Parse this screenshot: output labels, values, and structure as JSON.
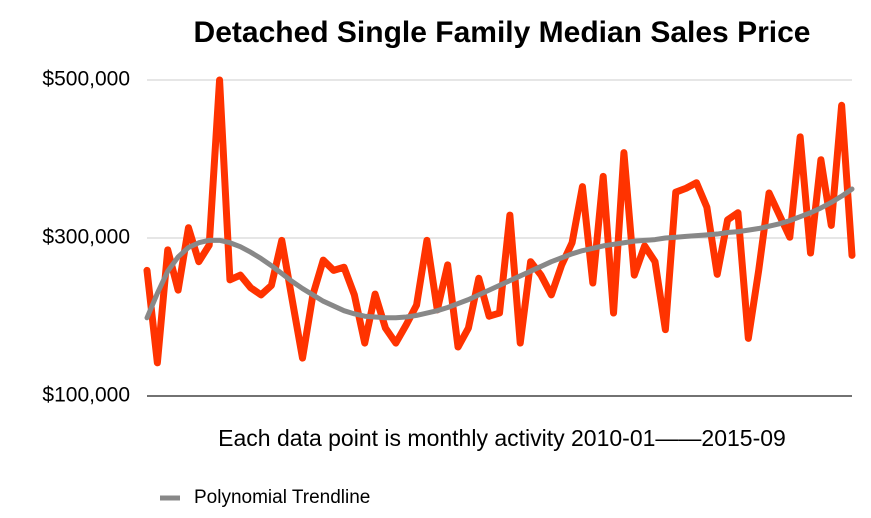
{
  "chart_data": {
    "type": "line",
    "title": "Detached Single Family Median Sales Price",
    "x_label": "Each data point is monthly activity 2010-01——2015-09",
    "ylim": [
      100000,
      500000
    ],
    "yticks": [
      {
        "value": 100000,
        "label": "$100,000"
      },
      {
        "value": 300000,
        "label": "$300,000"
      },
      {
        "value": 500000,
        "label": "$500,000"
      }
    ],
    "grid": true,
    "legend": "bottom-left",
    "series": [
      {
        "color": "#ff3300",
        "values": [
          259000,
          142000,
          285000,
          234000,
          313000,
          270000,
          291000,
          500000,
          247000,
          253000,
          237000,
          228000,
          240000,
          297000,
          222000,
          148000,
          228000,
          272000,
          259000,
          263000,
          228000,
          167000,
          229000,
          186000,
          167000,
          190000,
          215000,
          297000,
          209000,
          266000,
          162000,
          186000,
          249000,
          201000,
          205000,
          329000,
          167000,
          270000,
          253000,
          228000,
          266000,
          294000,
          365000,
          243000,
          378000,
          205000,
          408000,
          253000,
          290000,
          270000,
          184000,
          358000,
          363000,
          370000,
          339000,
          254000,
          323000,
          332000,
          173000,
          259000,
          357000,
          329000,
          301000,
          428000,
          281000,
          399000,
          316000,
          468000,
          278000
        ]
      },
      {
        "name": "Polynomial Trendline",
        "color": "#888888",
        "values": [
          199000,
          230000,
          258000,
          276000,
          288000,
          294000,
          297000,
          297000,
          294000,
          289000,
          282000,
          274000,
          265000,
          255000,
          245000,
          236000,
          228000,
          220000,
          214000,
          208000,
          204000,
          201000,
          200000,
          199000,
          199000,
          200000,
          202000,
          205000,
          208000,
          212000,
          217000,
          222000,
          228000,
          234000,
          240000,
          246000,
          252000,
          258000,
          264000,
          270000,
          275000,
          280000,
          284000,
          287000,
          290000,
          292000,
          294000,
          296000,
          297000,
          298000,
          300000,
          301000,
          302000,
          303000,
          304000,
          305000,
          307000,
          308000,
          310000,
          312000,
          315000,
          318000,
          322000,
          327000,
          332000,
          338000,
          345000,
          353000,
          362000
        ]
      }
    ]
  }
}
